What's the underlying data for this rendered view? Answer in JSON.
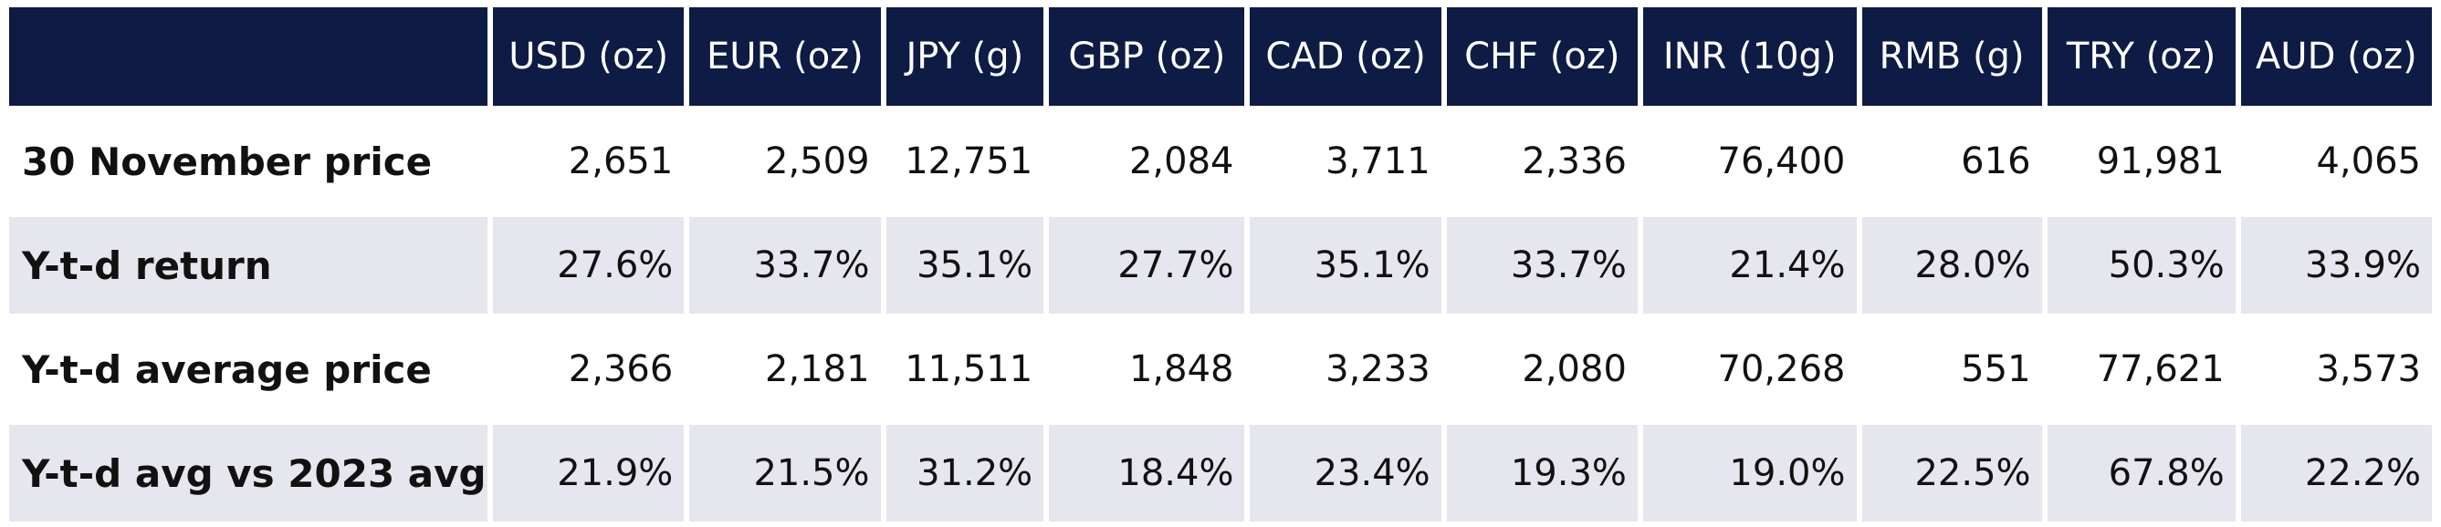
{
  "table": {
    "corner_label": "",
    "columns": [
      "USD (oz)",
      "EUR (oz)",
      "JPY (g)",
      "GBP (oz)",
      "CAD (oz)",
      "CHF (oz)",
      "INR (10g)",
      "RMB (g)",
      "TRY (oz)",
      "AUD (oz)"
    ],
    "rows": [
      {
        "label": "30 November price",
        "values": [
          "2,651",
          "2,509",
          "12,751",
          "2,084",
          "3,711",
          "2,336",
          "76,400",
          "616",
          "91,981",
          "4,065"
        ]
      },
      {
        "label": "Y-t-d return",
        "values": [
          "27.6%",
          "33.7%",
          "35.1%",
          "27.7%",
          "35.1%",
          "33.7%",
          "21.4%",
          "28.0%",
          "50.3%",
          "33.9%"
        ]
      },
      {
        "label": "Y-t-d average price",
        "values": [
          "2,366",
          "2,181",
          "11,511",
          "1,848",
          "3,233",
          "2,080",
          "70,268",
          "551",
          "77,621",
          "3,573"
        ]
      },
      {
        "label": "Y-t-d avg vs 2023 avg",
        "values": [
          "21.9%",
          "21.5%",
          "31.2%",
          "18.4%",
          "23.4%",
          "19.3%",
          "19.0%",
          "22.5%",
          "67.8%",
          "22.2%"
        ]
      }
    ]
  },
  "colors": {
    "header_bg": "#0d1b45",
    "header_text": "#ffffff",
    "shaded_row_bg": "#e5e6ee",
    "plain_row_bg": "#ffffff"
  }
}
